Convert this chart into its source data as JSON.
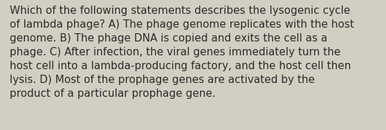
{
  "lines": [
    "Which of the following statements describes the lysogenic cycle",
    "of lambda phage? A) The phage genome replicates with the host",
    "genome. B) The phage DNA is copied and exits the cell as a",
    "phage. C) After infection, the viral genes immediately turn the",
    "host cell into a lambda-producing factory, and the host cell then",
    "lysis. D) Most of the prophage genes are activated by the",
    "product of a particular prophage gene."
  ],
  "background_color": "#d3cec2",
  "text_color": "#2b2b2b",
  "font_size": 11.0,
  "figwidth": 5.58,
  "figheight": 1.88,
  "dpi": 100
}
